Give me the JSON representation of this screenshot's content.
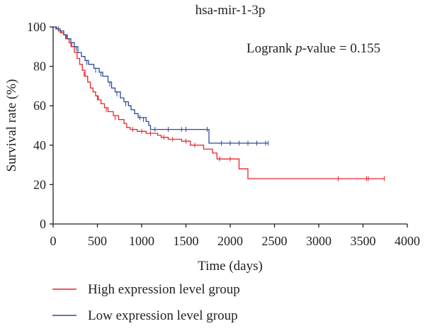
{
  "chart_data": {
    "type": "line",
    "title": "hsa-mir-1-3p",
    "annotation": {
      "prefix": "Logrank ",
      "italic": "p",
      "suffix": "-value = 0.155"
    },
    "xlabel": "Time (days)",
    "ylabel": "Survival rate (%)",
    "xlim": [
      0,
      4000
    ],
    "ylim": [
      0,
      100
    ],
    "x_ticks": [
      0,
      500,
      1000,
      1500,
      2000,
      2500,
      3000,
      3500,
      4000
    ],
    "y_ticks": [
      0,
      20,
      40,
      60,
      80,
      100
    ],
    "grid": false,
    "legend_position": "bottom-left",
    "series": [
      {
        "name": "High expression level group",
        "color": "#e8262b",
        "steps": [
          [
            0,
            100
          ],
          [
            30,
            99
          ],
          [
            60,
            98
          ],
          [
            90,
            97
          ],
          [
            120,
            96
          ],
          [
            150,
            94
          ],
          [
            180,
            92
          ],
          [
            210,
            90
          ],
          [
            240,
            87
          ],
          [
            270,
            84
          ],
          [
            300,
            81
          ],
          [
            330,
            78
          ],
          [
            360,
            75
          ],
          [
            390,
            72
          ],
          [
            420,
            69
          ],
          [
            450,
            67
          ],
          [
            480,
            65
          ],
          [
            510,
            63
          ],
          [
            540,
            61
          ],
          [
            580,
            59
          ],
          [
            620,
            57
          ],
          [
            680,
            55
          ],
          [
            740,
            53
          ],
          [
            800,
            51
          ],
          [
            830,
            49
          ],
          [
            870,
            48
          ],
          [
            950,
            47
          ],
          [
            1050,
            46
          ],
          [
            1180,
            45
          ],
          [
            1220,
            44
          ],
          [
            1300,
            43
          ],
          [
            1450,
            42
          ],
          [
            1550,
            40
          ],
          [
            1700,
            38
          ],
          [
            1800,
            36
          ],
          [
            1850,
            33
          ],
          [
            2100,
            28
          ],
          [
            2200,
            23
          ],
          [
            3740,
            23
          ]
        ],
        "censored": [
          [
            80,
            98
          ],
          [
            200,
            91
          ],
          [
            350,
            76
          ],
          [
            500,
            64
          ],
          [
            600,
            58
          ],
          [
            700,
            54
          ],
          [
            900,
            48
          ],
          [
            1000,
            47
          ],
          [
            1100,
            46
          ],
          [
            1250,
            44
          ],
          [
            1350,
            43
          ],
          [
            1500,
            42
          ],
          [
            1600,
            40
          ],
          [
            1880,
            33
          ],
          [
            2000,
            33
          ],
          [
            3220,
            23
          ],
          [
            3540,
            23
          ],
          [
            3560,
            23
          ],
          [
            3740,
            23
          ]
        ]
      },
      {
        "name": "Low expression level group",
        "color": "#2b4c9b",
        "steps": [
          [
            0,
            100
          ],
          [
            40,
            99
          ],
          [
            80,
            98
          ],
          [
            120,
            96
          ],
          [
            160,
            94
          ],
          [
            200,
            92
          ],
          [
            240,
            90
          ],
          [
            280,
            87
          ],
          [
            320,
            85
          ],
          [
            360,
            83
          ],
          [
            400,
            81
          ],
          [
            460,
            79
          ],
          [
            520,
            77
          ],
          [
            560,
            75
          ],
          [
            620,
            72
          ],
          [
            660,
            69
          ],
          [
            700,
            67
          ],
          [
            760,
            64
          ],
          [
            800,
            62
          ],
          [
            850,
            60
          ],
          [
            880,
            58
          ],
          [
            920,
            56
          ],
          [
            960,
            54
          ],
          [
            1050,
            52
          ],
          [
            1080,
            50
          ],
          [
            1100,
            48
          ],
          [
            1760,
            41
          ],
          [
            2430,
            41
          ]
        ],
        "censored": [
          [
            60,
            99
          ],
          [
            140,
            95
          ],
          [
            260,
            89
          ],
          [
            380,
            82
          ],
          [
            480,
            78
          ],
          [
            540,
            76
          ],
          [
            640,
            71
          ],
          [
            720,
            66
          ],
          [
            820,
            61
          ],
          [
            980,
            54
          ],
          [
            1020,
            53
          ],
          [
            1150,
            48
          ],
          [
            1300,
            48
          ],
          [
            1450,
            48
          ],
          [
            1500,
            48
          ],
          [
            1740,
            48
          ],
          [
            1900,
            41
          ],
          [
            2000,
            41
          ],
          [
            2100,
            41
          ],
          [
            2200,
            41
          ],
          [
            2300,
            41
          ],
          [
            2400,
            41
          ],
          [
            2430,
            41
          ]
        ]
      }
    ]
  }
}
